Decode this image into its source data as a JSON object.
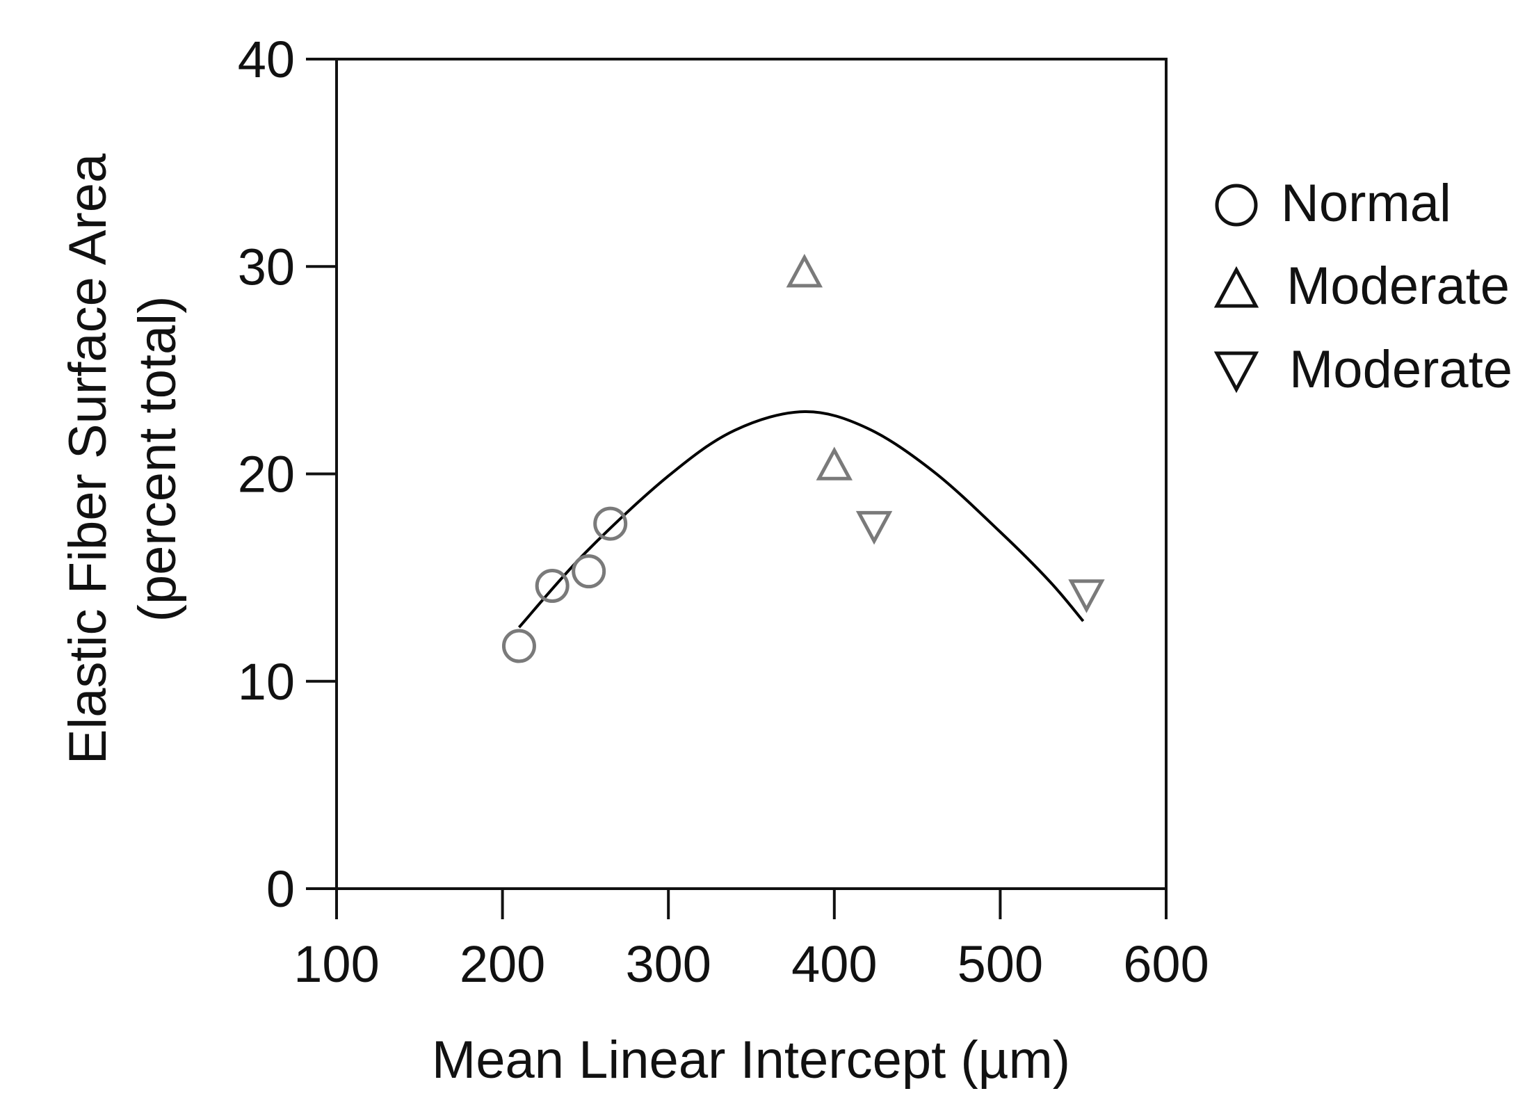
{
  "chart_data": {
    "type": "scatter",
    "title": "",
    "xlabel": "Mean Linear Intercept (µm)",
    "ylabel_line1": "Elastic Fiber Surface Area",
    "ylabel_line2": "(percent total)",
    "xlim": [
      100,
      600
    ],
    "ylim": [
      0,
      40
    ],
    "xticks": [
      100,
      200,
      300,
      400,
      500,
      600
    ],
    "yticks": [
      0,
      10,
      20,
      30,
      40
    ],
    "grid": false,
    "legend_position": "right",
    "series": [
      {
        "name": "Normal",
        "marker": "circle",
        "color": "#7a7a7a",
        "points": [
          [
            210,
            11.7
          ],
          [
            230,
            14.6
          ],
          [
            252,
            15.3
          ],
          [
            265,
            17.6
          ]
        ]
      },
      {
        "name": "Moderate",
        "marker": "triangle-up",
        "color": "#7a7a7a",
        "points": [
          [
            382,
            29.7
          ],
          [
            400,
            20.4
          ]
        ]
      },
      {
        "name": "Moderate",
        "marker": "triangle-down",
        "color": "#7a7a7a",
        "points": [
          [
            424,
            17.5
          ],
          [
            552,
            14.2
          ]
        ]
      }
    ],
    "fit_curve": {
      "kind": "polynomial-fit",
      "color": "#000000",
      "x_range": [
        210,
        550
      ],
      "points": [
        [
          210,
          12.6
        ],
        [
          250,
          16.2
        ],
        [
          300,
          19.9
        ],
        [
          340,
          22.1
        ],
        [
          382,
          23.0
        ],
        [
          420,
          22.2
        ],
        [
          460,
          20.1
        ],
        [
          500,
          17.2
        ],
        [
          530,
          14.8
        ],
        [
          550,
          12.9
        ]
      ]
    }
  },
  "legend": {
    "items": [
      {
        "label": "Normal",
        "marker": "circle-icon"
      },
      {
        "label": "Moderate",
        "marker": "triangle-up-icon"
      },
      {
        "label": "Moderate",
        "marker": "triangle-down-icon"
      }
    ]
  }
}
